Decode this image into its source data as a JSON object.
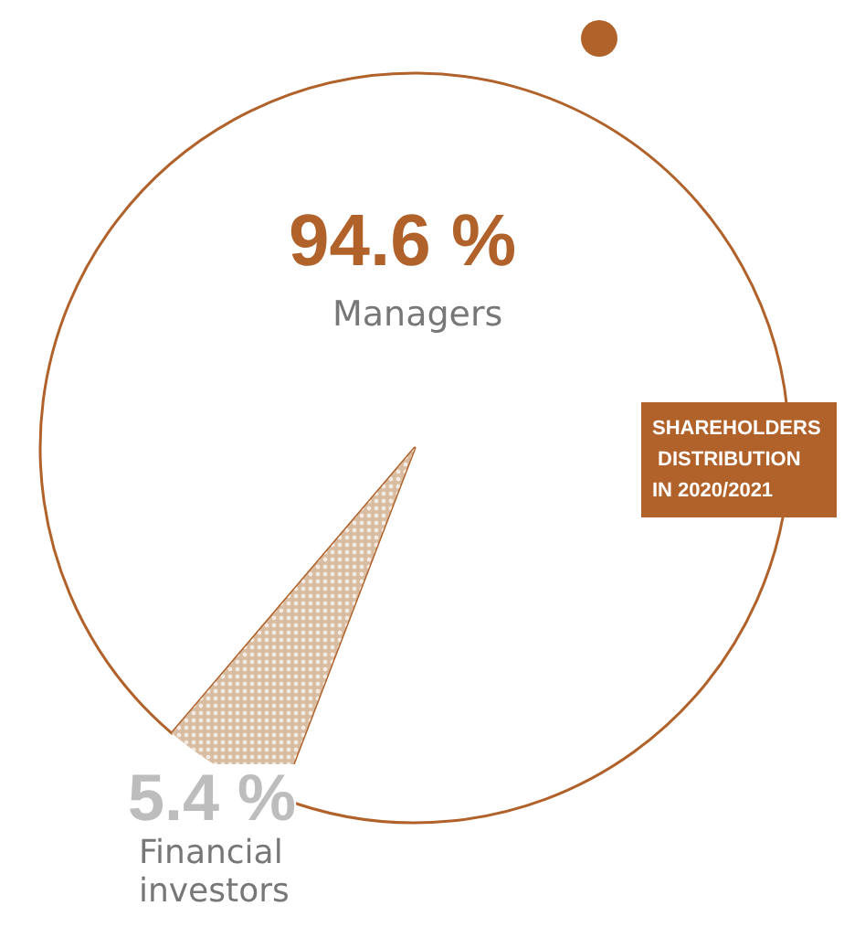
{
  "chart_data": {
    "type": "pie",
    "title": "SHAREHOLDERS DISTRIBUTION IN 2020/2021",
    "categories": [
      "Managers",
      "Financial investors"
    ],
    "values": [
      94.6,
      5.4
    ],
    "value_labels": [
      "94.6 %",
      "5.4 %"
    ],
    "colors": [
      "#ffffff",
      "#d9bda3"
    ],
    "legend": false
  }
}
